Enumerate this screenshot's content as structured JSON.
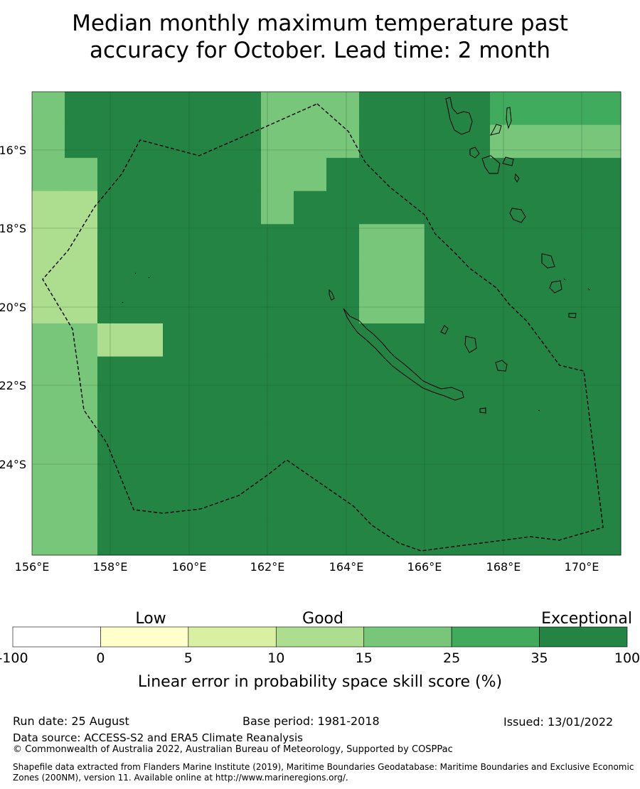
{
  "title": {
    "line1": "Median monthly maximum temperature past",
    "line2": "accuracy for October. Lead time: 2 month"
  },
  "map": {
    "lon_ticks": [
      "156°E",
      "158°E",
      "160°E",
      "162°E",
      "164°E",
      "166°E",
      "168°E",
      "170°E"
    ],
    "lat_ticks": [
      "16°S",
      "18°S",
      "20°S",
      "22°S",
      "24°S"
    ],
    "cell_levels": [
      "4666666444666655",
      "4666666444666644",
      "4466666446666666",
      "3366666466666666",
      "3366666666446666",
      "3366666666446666",
      "3366666666446666",
      "4433666666666666",
      "4466666666666666",
      "4466666666666666",
      "4466666666666666",
      "4466666666666666",
      "4466666666666666",
      "4466666666666666",
      "4466666666666666",
      "4466666666666666",
      "4466666666666666",
      "4466666666666666",
      "4466666666666666",
      "4466666666666666",
      "4466666666666666"
    ]
  },
  "legend": {
    "categories": [
      "Low",
      "Good",
      "Exceptional"
    ],
    "ticks": [
      "-100",
      "0",
      "5",
      "10",
      "15",
      "25",
      "35",
      "100"
    ],
    "colors": [
      "#ffffff",
      "#ffffcc",
      "#d9f0a3",
      "#addd8e",
      "#78c679",
      "#41ab5d",
      "#238443"
    ],
    "xlabel": "Linear error in probability space skill score (%)"
  },
  "footer": {
    "run_date": "Run date: 25 August",
    "base_period": "Base period: 1981-2018",
    "issued": "Issued: 13/01/2022",
    "data_source": "Data source: ACCESS-S2 and ERA5 Climate Reanalysis",
    "copyright": "© Commonwealth of Australia 2022, Australian Bureau of Meteorology, Supported by COSPPac",
    "shapefile_line1": "Shapefile data extracted from Flanders Marine Institute (2019), Maritime Boundaries Geodatabase: Maritime Boundaries and Exclusive Economic",
    "shapefile_line2": "Zones (200NM), version 11. Available online at http://www.marineregions.org/."
  }
}
